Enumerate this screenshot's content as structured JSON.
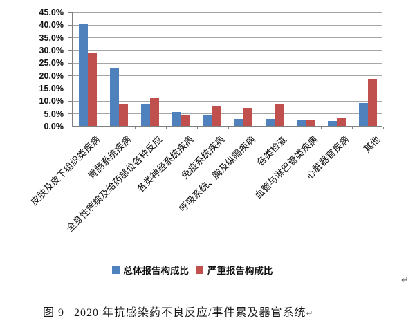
{
  "chart_data": {
    "type": "bar",
    "title": "",
    "categories": [
      "皮肤及皮下组织类疾病",
      "胃肠系统疾病",
      "全身性疾病及给药部位各种反应",
      "各类神经系统疾病",
      "免疫系统疾病",
      "呼吸系统、胸及纵隔疾病",
      "各类检查",
      "血管与淋巴管类疾病",
      "心脏器官疾病",
      "其他"
    ],
    "series": [
      {
        "name": "总体报告构成比",
        "color": "#4F81BD",
        "values": [
          40.3,
          23.0,
          8.4,
          5.5,
          4.5,
          2.7,
          2.7,
          2.2,
          1.9,
          9.1
        ]
      },
      {
        "name": "严重报告构成比",
        "color": "#C0504D",
        "values": [
          28.9,
          8.5,
          11.2,
          4.3,
          7.9,
          7.2,
          8.5,
          2.2,
          2.9,
          18.6
        ]
      }
    ],
    "ylabel": "",
    "xlabel": "",
    "ylim": [
      0,
      45
    ],
    "ytick_step": 5,
    "ytick_labels": [
      "0.0%",
      "5.0%",
      "10.0%",
      "15.0%",
      "20.0%",
      "25.0%",
      "30.0%",
      "35.0%",
      "40.0%",
      "45.0%"
    ],
    "grid": true,
    "legend_position": "bottom",
    "category_label_rotation_deg": 45
  },
  "legend": {
    "items": [
      {
        "label": "总体报告构成比",
        "color": "#4F81BD"
      },
      {
        "label": "严重报告构成比",
        "color": "#C0504D"
      }
    ]
  },
  "caption": {
    "figure_label": "图 9",
    "title": "2020 年抗感染药不良反应/事件累及器官系统",
    "return_mark": "↵"
  },
  "marks": {
    "paragraph_return": "↵"
  },
  "colors": {
    "series_total": "#4F81BD",
    "series_serious": "#C0504D",
    "gridline": "#a6a6a6",
    "axis": "#808080",
    "text": "#111111"
  }
}
